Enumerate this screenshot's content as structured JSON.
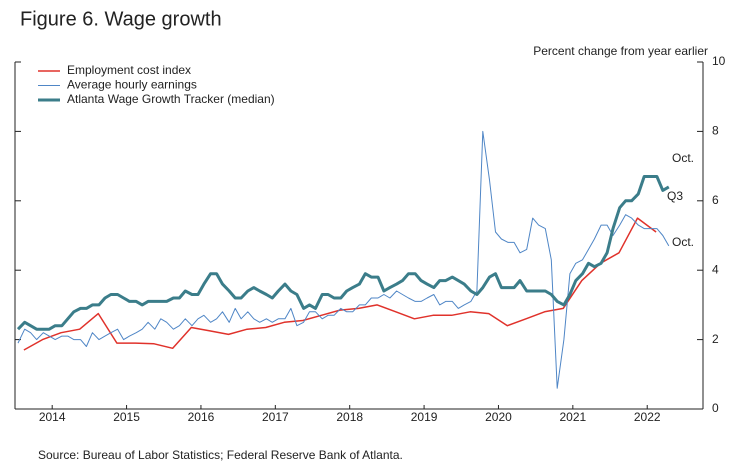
{
  "chart_data": {
    "type": "line",
    "title": "Figure 6. Wage growth",
    "y_axis_label": "Percent change from year earlier",
    "source": "Source: Bureau of Labor Statistics; Federal Reserve Bank of Atlanta.",
    "xlim": [
      2014,
      2023.25
    ],
    "xticks": [
      {
        "value": 2014.5,
        "label": "2014"
      },
      {
        "value": 2015.5,
        "label": "2015"
      },
      {
        "value": 2016.5,
        "label": "2016"
      },
      {
        "value": 2017.5,
        "label": "2017"
      },
      {
        "value": 2018.5,
        "label": "2018"
      },
      {
        "value": 2019.5,
        "label": "2019"
      },
      {
        "value": 2020.5,
        "label": "2020"
      },
      {
        "value": 2021.5,
        "label": "2021"
      },
      {
        "value": 2022.5,
        "label": "2022"
      }
    ],
    "ylim": [
      0,
      10
    ],
    "yticks": [
      0,
      2,
      4,
      6,
      8,
      10
    ],
    "legend": "top-left",
    "x": [
      2014.04,
      2014.13,
      2014.21,
      2014.29,
      2014.38,
      2014.46,
      2014.54,
      2014.63,
      2014.71,
      2014.79,
      2014.88,
      2014.96,
      2015.04,
      2015.13,
      2015.21,
      2015.29,
      2015.38,
      2015.46,
      2015.54,
      2015.63,
      2015.71,
      2015.79,
      2015.88,
      2015.96,
      2016.04,
      2016.13,
      2016.21,
      2016.29,
      2016.38,
      2016.46,
      2016.54,
      2016.63,
      2016.71,
      2016.79,
      2016.88,
      2016.96,
      2017.04,
      2017.13,
      2017.21,
      2017.29,
      2017.38,
      2017.46,
      2017.54,
      2017.63,
      2017.71,
      2017.79,
      2017.88,
      2017.96,
      2018.04,
      2018.13,
      2018.21,
      2018.29,
      2018.38,
      2018.46,
      2018.54,
      2018.63,
      2018.71,
      2018.79,
      2018.88,
      2018.96,
      2019.04,
      2019.13,
      2019.21,
      2019.29,
      2019.38,
      2019.46,
      2019.54,
      2019.63,
      2019.71,
      2019.79,
      2019.88,
      2019.96,
      2020.04,
      2020.13,
      2020.21,
      2020.29,
      2020.38,
      2020.46,
      2020.54,
      2020.63,
      2020.71,
      2020.79,
      2020.88,
      2020.96,
      2021.04,
      2021.13,
      2021.21,
      2021.29,
      2021.38,
      2021.46,
      2021.54,
      2021.63,
      2021.71,
      2021.79,
      2021.88,
      2021.96,
      2022.04,
      2022.13,
      2022.21,
      2022.29,
      2022.38,
      2022.46,
      2022.54,
      2022.63,
      2022.71,
      2022.79
    ],
    "series": [
      {
        "name": "Employment cost index",
        "color": "#e0322b",
        "width": 1.5,
        "x": [
          2014.12,
          2014.37,
          2014.62,
          2014.87,
          2015.12,
          2015.37,
          2015.62,
          2015.87,
          2016.12,
          2016.37,
          2016.62,
          2016.87,
          2017.12,
          2017.37,
          2017.62,
          2017.87,
          2018.12,
          2018.37,
          2018.62,
          2018.87,
          2019.12,
          2019.37,
          2019.62,
          2019.87,
          2020.12,
          2020.37,
          2020.62,
          2020.87,
          2021.12,
          2021.37,
          2021.62,
          2021.87,
          2022.12,
          2022.37,
          2022.62
        ],
        "values": [
          1.7,
          2.0,
          2.2,
          2.3,
          2.75,
          1.9,
          1.9,
          1.88,
          1.75,
          2.35,
          2.25,
          2.15,
          2.3,
          2.35,
          2.5,
          2.55,
          2.7,
          2.85,
          2.9,
          3.0,
          2.8,
          2.6,
          2.7,
          2.7,
          2.8,
          2.75,
          2.4,
          2.6,
          2.8,
          2.9,
          3.7,
          4.2,
          4.5,
          5.5,
          5.1
        ]
      },
      {
        "name": "Average hourly earnings",
        "color": "#4f86c6",
        "width": 1,
        "values": [
          1.9,
          2.3,
          2.2,
          2.0,
          2.2,
          2.1,
          2.0,
          2.1,
          2.1,
          2.0,
          2.0,
          1.8,
          2.2,
          2.0,
          2.1,
          2.2,
          2.3,
          2.0,
          2.1,
          2.2,
          2.3,
          2.5,
          2.3,
          2.6,
          2.5,
          2.3,
          2.4,
          2.6,
          2.4,
          2.6,
          2.7,
          2.5,
          2.6,
          2.8,
          2.5,
          2.9,
          2.6,
          2.8,
          2.6,
          2.5,
          2.6,
          2.5,
          2.6,
          2.6,
          2.9,
          2.4,
          2.5,
          2.8,
          2.8,
          2.6,
          2.7,
          2.7,
          2.9,
          2.8,
          2.8,
          3.0,
          3.0,
          3.2,
          3.2,
          3.3,
          3.2,
          3.4,
          3.3,
          3.2,
          3.1,
          3.1,
          3.2,
          3.3,
          3.0,
          3.1,
          3.1,
          2.9,
          3.0,
          3.1,
          3.4,
          8.0,
          6.6,
          5.1,
          4.9,
          4.8,
          4.8,
          4.5,
          4.6,
          5.5,
          5.3,
          5.2,
          4.3,
          0.6,
          2.0,
          3.9,
          4.2,
          4.3,
          4.6,
          4.9,
          5.3,
          5.3,
          5.0,
          5.3,
          5.6,
          5.5,
          5.3,
          5.2,
          5.2,
          5.2,
          5.0,
          4.7
        ]
      },
      {
        "name": "Atlanta Wage Growth Tracker (median)",
        "color": "#3b7d8a",
        "width": 3,
        "values": [
          2.3,
          2.5,
          2.4,
          2.3,
          2.3,
          2.3,
          2.4,
          2.4,
          2.6,
          2.8,
          2.9,
          2.9,
          3.0,
          3.0,
          3.2,
          3.3,
          3.3,
          3.2,
          3.1,
          3.1,
          3.0,
          3.1,
          3.1,
          3.1,
          3.1,
          3.2,
          3.2,
          3.4,
          3.3,
          3.3,
          3.6,
          3.9,
          3.9,
          3.6,
          3.4,
          3.2,
          3.2,
          3.4,
          3.5,
          3.4,
          3.3,
          3.2,
          3.4,
          3.6,
          3.4,
          3.3,
          2.9,
          3.0,
          2.9,
          3.3,
          3.3,
          3.2,
          3.2,
          3.4,
          3.5,
          3.6,
          3.9,
          3.8,
          3.8,
          3.4,
          3.5,
          3.6,
          3.7,
          3.9,
          3.9,
          3.7,
          3.6,
          3.5,
          3.7,
          3.7,
          3.8,
          3.7,
          3.6,
          3.4,
          3.3,
          3.5,
          3.8,
          3.9,
          3.5,
          3.5,
          3.5,
          3.7,
          3.4,
          3.4,
          3.4,
          3.4,
          3.3,
          3.1,
          3.0,
          3.3,
          3.7,
          3.9,
          4.2,
          4.1,
          4.2,
          4.5,
          5.2,
          5.8,
          6.0,
          6.0,
          6.2,
          6.7,
          6.7,
          6.7,
          6.3,
          6.4
        ]
      }
    ],
    "annotations": [
      {
        "text": "Oct.",
        "color": "#3b7d8a"
      },
      {
        "text": "Q3",
        "color": "#e0322b"
      },
      {
        "text": "Oct.",
        "color": "#4f86c6"
      }
    ]
  }
}
